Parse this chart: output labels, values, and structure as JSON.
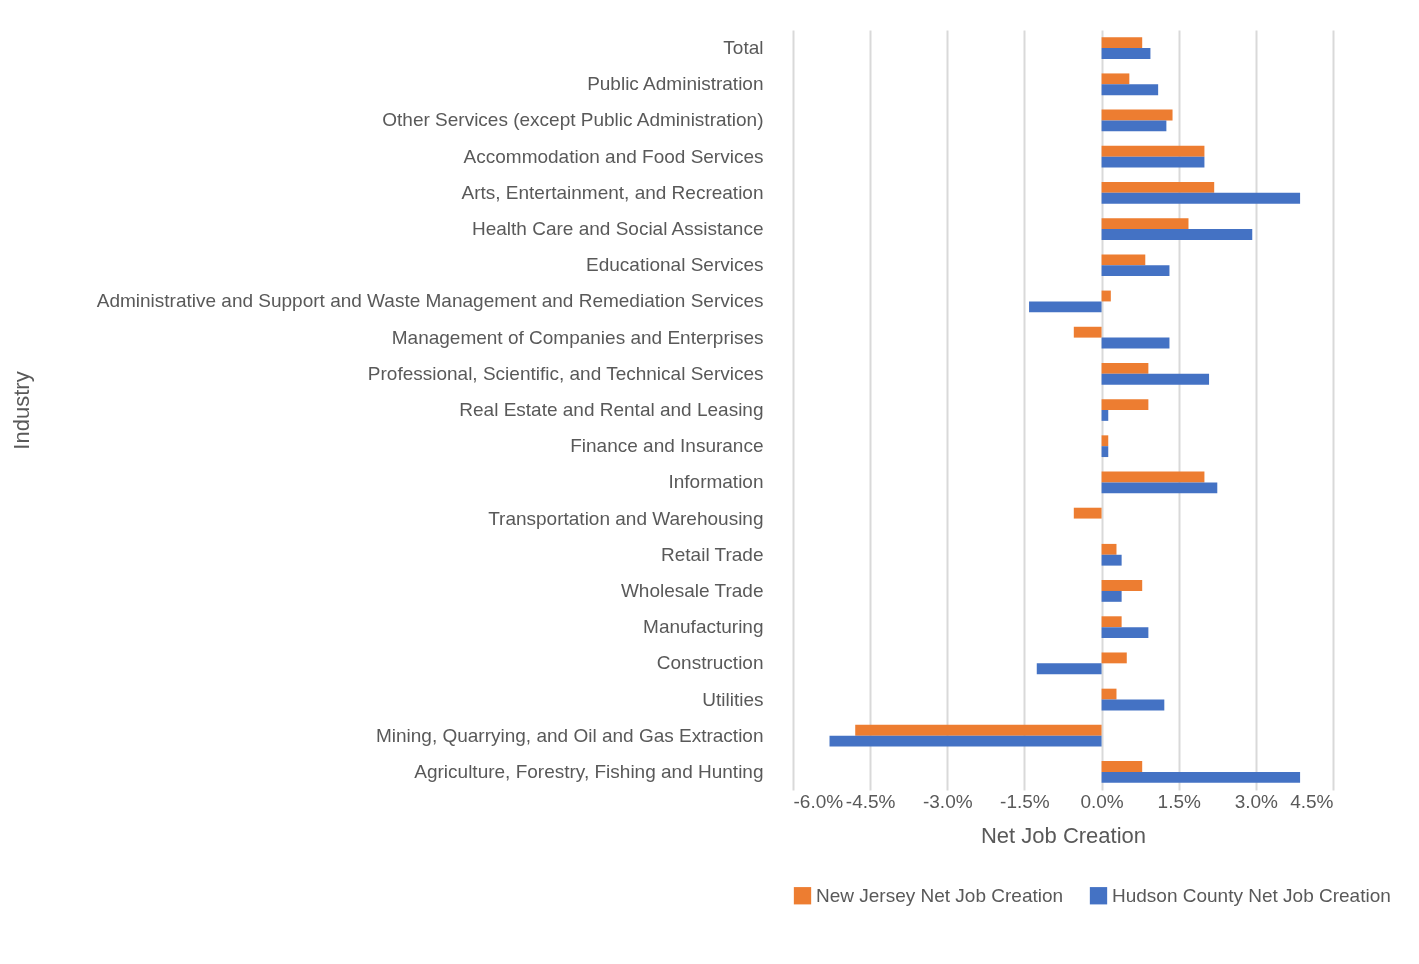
{
  "chart_data": {
    "type": "bar",
    "orientation": "horizontal",
    "xlabel": "Net Job Creation",
    "ylabel": "Industry",
    "categories": [
      "Total",
      "Public Administration",
      "Other Services (except Public Administration)",
      "Accommodation and Food Services",
      "Arts, Entertainment, and Recreation",
      "Health Care and Social Assistance",
      "Educational Services",
      "Administrative and Support and Waste Management and Remediation Services",
      "Management of Companies and Enterprises",
      "Professional, Scientific, and Technical Services",
      "Real Estate and Rental and Leasing",
      "Finance and Insurance",
      "Information",
      "Transportation and Warehousing",
      "Retail Trade",
      "Wholesale Trade",
      "Manufacturing",
      "Construction",
      "Utilities",
      "Mining, Quarrying, and Oil and Gas Extraction",
      "Agriculture, Forestry, Fishing and Hunting"
    ],
    "series": [
      {
        "name": "New Jersey Net Job Creation",
        "color": "#ed7d31",
        "values": [
          0.79,
          0.54,
          1.38,
          2.0,
          2.19,
          1.69,
          0.85,
          0.18,
          -0.54,
          0.91,
          0.91,
          0.13,
          2.0,
          -0.54,
          0.29,
          0.79,
          0.39,
          0.49,
          0.29,
          -4.79,
          0.79
        ]
      },
      {
        "name": "Hudson County Net Job Creation",
        "color": "#4472c4",
        "values": [
          0.95,
          1.1,
          1.26,
          2.0,
          3.86,
          2.93,
          1.32,
          -1.41,
          1.32,
          2.09,
          0.13,
          0.13,
          2.25,
          0,
          0.39,
          0.39,
          0.91,
          -1.26,
          1.22,
          -5.29,
          3.86
        ]
      }
    ],
    "xlim": [
      -6,
      4.5
    ],
    "xticks": [
      {
        "value": -6,
        "label": "-6.0%"
      },
      {
        "value": -4.5,
        "label": "-4.5%"
      },
      {
        "value": -3,
        "label": "-3.0%"
      },
      {
        "value": -1.5,
        "label": "-1.5%"
      },
      {
        "value": 0,
        "label": "0.0%"
      },
      {
        "value": 1.5,
        "label": "1.5%"
      },
      {
        "value": 3,
        "label": "3.0%"
      },
      {
        "value": 4.5,
        "label": "4.5%"
      }
    ],
    "grid": "x",
    "legend": "bottom"
  }
}
